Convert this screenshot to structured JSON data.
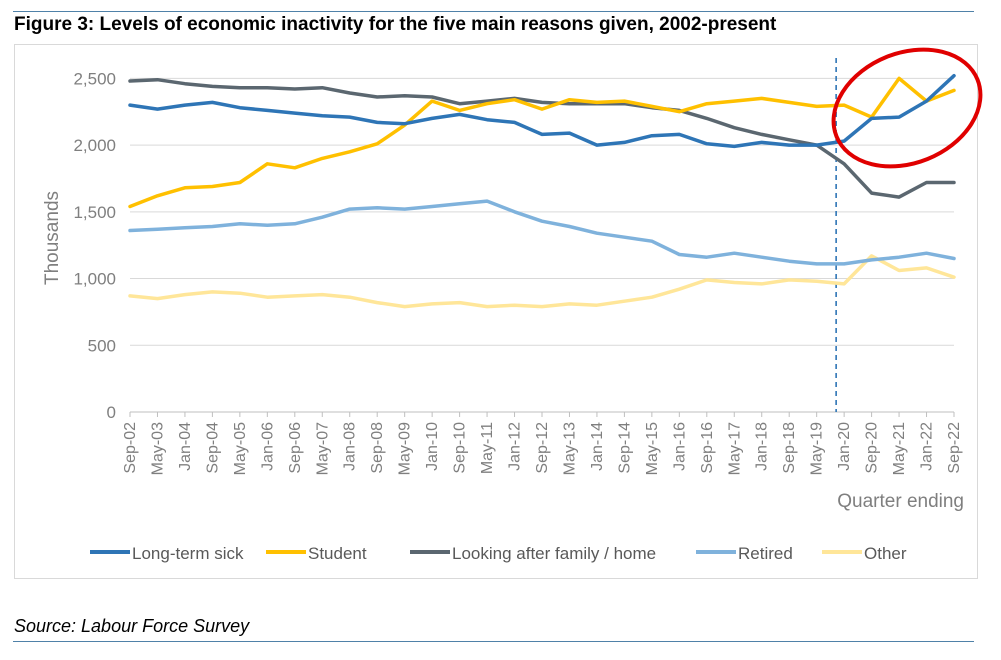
{
  "title": "Figure 3: Levels of economic inactivity for the five main reasons given, 2002-present",
  "source": "Source: Labour Force Survey",
  "chart_data": {
    "type": "line",
    "ylabel": "Thousands",
    "xlabel": "Quarter ending",
    "ylim": [
      0,
      2750
    ],
    "yticks": [
      0,
      500,
      1000,
      1500,
      2000,
      2500
    ],
    "ytick_labels": [
      "0",
      "500",
      "1,000",
      "1,500",
      "2,000",
      "2,500"
    ],
    "x_tick_labels": [
      "Sep-02",
      "May-03",
      "Jan-04",
      "Sep-04",
      "May-05",
      "Jan-06",
      "Sep-06",
      "May-07",
      "Jan-08",
      "Sep-08",
      "May-09",
      "Jan-10",
      "Sep-10",
      "May-11",
      "Jan-12",
      "Sep-12",
      "May-13",
      "Jan-14",
      "Sep-14",
      "May-15",
      "Jan-16",
      "Sep-16",
      "May-17",
      "Jan-18",
      "Sep-18",
      "May-19",
      "Jan-20",
      "Sep-20",
      "May-21",
      "Jan-22",
      "Sep-22"
    ],
    "grid": true,
    "legend_position": "bottom",
    "vertical_marker": "Jan-20",
    "highlight": "red ellipse around Jan-20 to Sep-22",
    "x": [
      "Sep-02",
      "May-03",
      "Jan-04",
      "Sep-04",
      "May-05",
      "Jan-06",
      "Sep-06",
      "May-07",
      "Jan-08",
      "Sep-08",
      "May-09",
      "Jan-10",
      "Sep-10",
      "May-11",
      "Jan-12",
      "Sep-12",
      "May-13",
      "Jan-14",
      "Sep-14",
      "May-15",
      "Jan-16",
      "Sep-16",
      "May-17",
      "Jan-18",
      "Sep-18",
      "May-19",
      "Jan-20",
      "Sep-20",
      "May-21",
      "Jan-22",
      "Sep-22"
    ],
    "series": [
      {
        "name": "Long-term sick",
        "color": "#2e75b6",
        "values": [
          2300,
          2270,
          2300,
          2320,
          2280,
          2260,
          2240,
          2220,
          2210,
          2170,
          2160,
          2200,
          2230,
          2190,
          2170,
          2080,
          2090,
          2000,
          2020,
          2070,
          2080,
          2010,
          1990,
          2020,
          2000,
          2000,
          2030,
          2200,
          2210,
          2330,
          2520
        ]
      },
      {
        "name": "Student",
        "color": "#ffc000",
        "values": [
          1540,
          1620,
          1680,
          1690,
          1720,
          1860,
          1830,
          1900,
          1950,
          2010,
          2150,
          2330,
          2260,
          2310,
          2340,
          2270,
          2340,
          2320,
          2330,
          2290,
          2250,
          2310,
          2330,
          2350,
          2320,
          2290,
          2300,
          2210,
          2500,
          2330,
          2410
        ]
      },
      {
        "name": "Looking after family / home",
        "color": "#5b6770",
        "values": [
          2480,
          2490,
          2460,
          2440,
          2430,
          2430,
          2420,
          2430,
          2390,
          2360,
          2370,
          2360,
          2310,
          2330,
          2350,
          2320,
          2310,
          2310,
          2310,
          2280,
          2260,
          2200,
          2130,
          2080,
          2040,
          2000,
          1860,
          1640,
          1610,
          1720,
          1720
        ]
      },
      {
        "name": "Retired",
        "color": "#7fb2dc",
        "values": [
          1360,
          1370,
          1380,
          1390,
          1410,
          1400,
          1410,
          1460,
          1520,
          1530,
          1520,
          1540,
          1560,
          1580,
          1500,
          1430,
          1390,
          1340,
          1310,
          1280,
          1180,
          1160,
          1190,
          1160,
          1130,
          1110,
          1110,
          1140,
          1160,
          1190,
          1150
        ]
      },
      {
        "name": "Other",
        "color": "#ffe699",
        "values": [
          870,
          850,
          880,
          900,
          890,
          860,
          870,
          880,
          860,
          820,
          790,
          810,
          820,
          790,
          800,
          790,
          810,
          800,
          830,
          860,
          920,
          990,
          970,
          960,
          990,
          980,
          960,
          1170,
          1060,
          1080,
          1010
        ]
      }
    ]
  }
}
